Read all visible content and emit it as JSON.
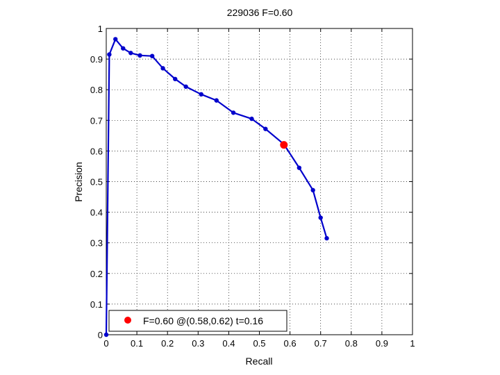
{
  "chart_data": {
    "type": "line",
    "title": "229036 F=0.60",
    "xlabel": "Recall",
    "ylabel": "Precision",
    "xlim": [
      0,
      1
    ],
    "ylim": [
      0,
      1
    ],
    "grid": true,
    "xticks": [
      0,
      0.1,
      0.2,
      0.3,
      0.4,
      0.5,
      0.6,
      0.7,
      0.8,
      0.9,
      1
    ],
    "yticks": [
      0,
      0.1,
      0.2,
      0.3,
      0.4,
      0.5,
      0.6,
      0.7,
      0.8,
      0.9,
      1
    ],
    "xtick_labels": [
      "0",
      "0.1",
      "0.2",
      "0.3",
      "0.4",
      "0.5",
      "0.6",
      "0.7",
      "0.8",
      "0.9",
      "1"
    ],
    "ytick_labels": [
      "0",
      "0.1",
      "0.2",
      "0.3",
      "0.4",
      "0.5",
      "0.6",
      "0.7",
      "0.8",
      "0.9",
      "1"
    ],
    "series": [
      {
        "color": "#0000cc",
        "x": [
          0.0,
          0.01,
          0.03,
          0.055,
          0.08,
          0.11,
          0.15,
          0.185,
          0.225,
          0.26,
          0.31,
          0.36,
          0.415,
          0.475,
          0.52,
          0.58,
          0.63,
          0.675,
          0.7,
          0.72
        ],
        "y": [
          0.0,
          0.915,
          0.965,
          0.935,
          0.92,
          0.912,
          0.91,
          0.87,
          0.835,
          0.81,
          0.785,
          0.765,
          0.725,
          0.705,
          0.672,
          0.622,
          0.545,
          0.472,
          0.382,
          0.315
        ]
      }
    ],
    "highlight_point": {
      "x": 0.58,
      "y": 0.62,
      "color": "#ff0000"
    },
    "legend": {
      "position": "bottom-left",
      "entries": [
        {
          "label": "F=0.60 @(0.58,0.62) t=0.16",
          "color": "#ff0000",
          "marker": "dot"
        }
      ]
    }
  }
}
